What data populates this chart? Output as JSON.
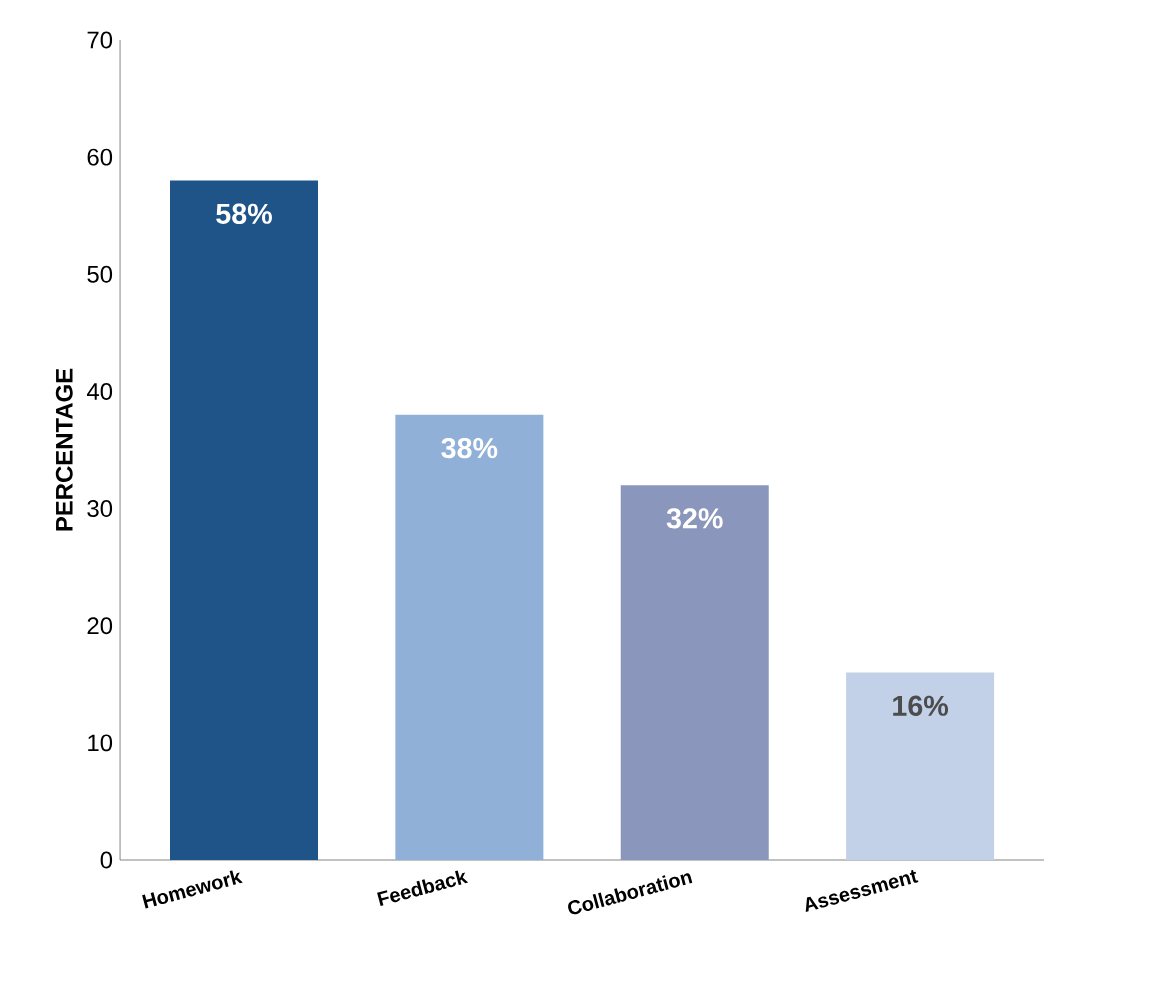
{
  "chart_data": {
    "type": "bar",
    "ylabel": "PERCENTAGE",
    "categories": [
      "Homework",
      "Feedback",
      "Collaboration",
      "Assessment"
    ],
    "values": [
      58,
      38,
      32,
      16
    ],
    "colors": [
      "#1f5489",
      "#91b0d8",
      "#8a96bb",
      "#c3d1e8"
    ],
    "value_labels": [
      "58%",
      "38%",
      "32%",
      "16%"
    ],
    "ylim": [
      0,
      70
    ],
    "yticks": [
      0,
      10,
      20,
      30,
      40,
      50,
      60,
      70
    ],
    "grid": false
  }
}
